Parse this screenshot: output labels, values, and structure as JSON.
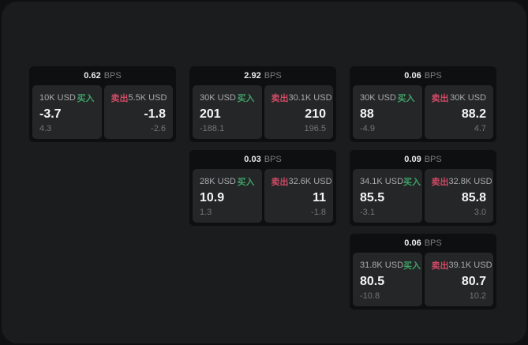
{
  "labels": {
    "buy": "买入",
    "sell": "卖出",
    "bps_unit": "BPS"
  },
  "colors": {
    "buy_green": "#3fa166",
    "sell_red": "#cf4a64",
    "page_bg": "#0f1011",
    "panel_bg": "#1b1c1e",
    "card_bg": "#0e0f10",
    "pane_bg": "#242628"
  },
  "cards": [
    {
      "bps": "0.62",
      "buy": {
        "size": "10K USD",
        "price": "-3.7",
        "sub": "4.3"
      },
      "sell": {
        "size": "5.5K USD",
        "price": "-1.8",
        "sub": "-2.6"
      }
    },
    {
      "bps": "2.92",
      "buy": {
        "size": "30K USD",
        "price": "201",
        "sub": "-188.1"
      },
      "sell": {
        "size": "30.1K USD",
        "price": "210",
        "sub": "196.5"
      }
    },
    {
      "bps": "0.06",
      "buy": {
        "size": "30K USD",
        "price": "88",
        "sub": "-4.9"
      },
      "sell": {
        "size": "30K USD",
        "price": "88.2",
        "sub": "4.7"
      }
    },
    {
      "bps": "0.03",
      "buy": {
        "size": "28K USD",
        "price": "10.9",
        "sub": "1.3"
      },
      "sell": {
        "size": "32.6K USD",
        "price": "11",
        "sub": "-1.8"
      }
    },
    {
      "bps": "0.09",
      "buy": {
        "size": "34.1K USD",
        "price": "85.5",
        "sub": "-3.1"
      },
      "sell": {
        "size": "32.8K USD",
        "price": "85.8",
        "sub": "3.0"
      }
    },
    {
      "bps": "0.06",
      "buy": {
        "size": "31.8K USD",
        "price": "80.5",
        "sub": "-10.8"
      },
      "sell": {
        "size": "39.1K USD",
        "price": "80.7",
        "sub": "10.2"
      }
    }
  ]
}
